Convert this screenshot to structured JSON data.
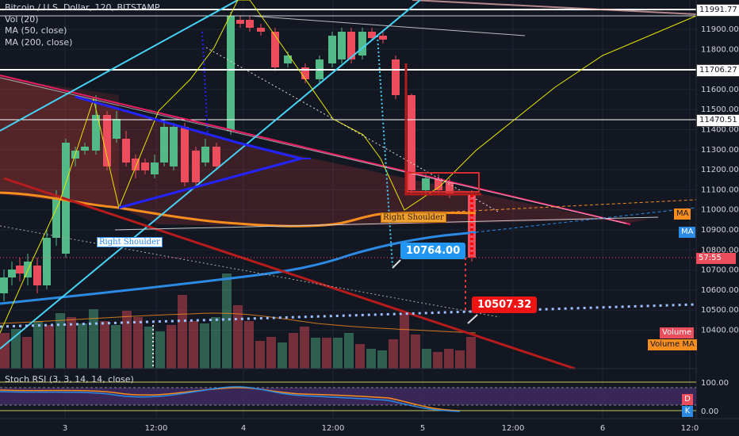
{
  "legend": {
    "symbol": "Bitcoin / U.S. Dollar, 120, BITSTAMP",
    "indicators": [
      "Vol (20)",
      "MA (50, close)",
      "MA (200, close)"
    ]
  },
  "rsi_panel": {
    "legend": "Stoch RSI (3, 3, 14, 14, close)",
    "scale": [
      "100.00",
      "0.00"
    ],
    "tags": [
      "D",
      "K"
    ]
  },
  "price_axis": {
    "ticks": [
      "11900.00",
      "11800.00",
      "11700.00",
      "11600.00",
      "11500.00",
      "11400.00",
      "11300.00",
      "11200.00",
      "11100.00",
      "11000.00",
      "10900.00",
      "10800.00",
      "10700.00",
      "10600.00",
      "10500.00",
      "10400.00"
    ],
    "boxed_levels": [
      "11991.77",
      "11706.27",
      "11470.51"
    ],
    "tags": {
      "ma50": "MA",
      "ma200": "MA",
      "countdown": "57:55",
      "volume": "Volume",
      "volume_ma": "Volume MA"
    }
  },
  "time_axis": [
    "3",
    "12:00",
    "4",
    "12:00",
    "5",
    "12:00",
    "6",
    "12:0"
  ],
  "annotations": {
    "target_up": "10764.00",
    "target_down": "10507.32",
    "shoulder_right": "Right Shoulder",
    "shoulder_left": "Right Shoulder"
  },
  "colors": {
    "background": "#131722",
    "candle_up": "#53b987",
    "candle_down": "#eb4d5c",
    "ma50": "#f68d1e",
    "ma200": "#2b8ae4",
    "trend_pink": "#e91e63",
    "trend_cyan": "#45d3f5",
    "callout_blue": "#2196f3",
    "callout_red": "#f01313"
  }
}
